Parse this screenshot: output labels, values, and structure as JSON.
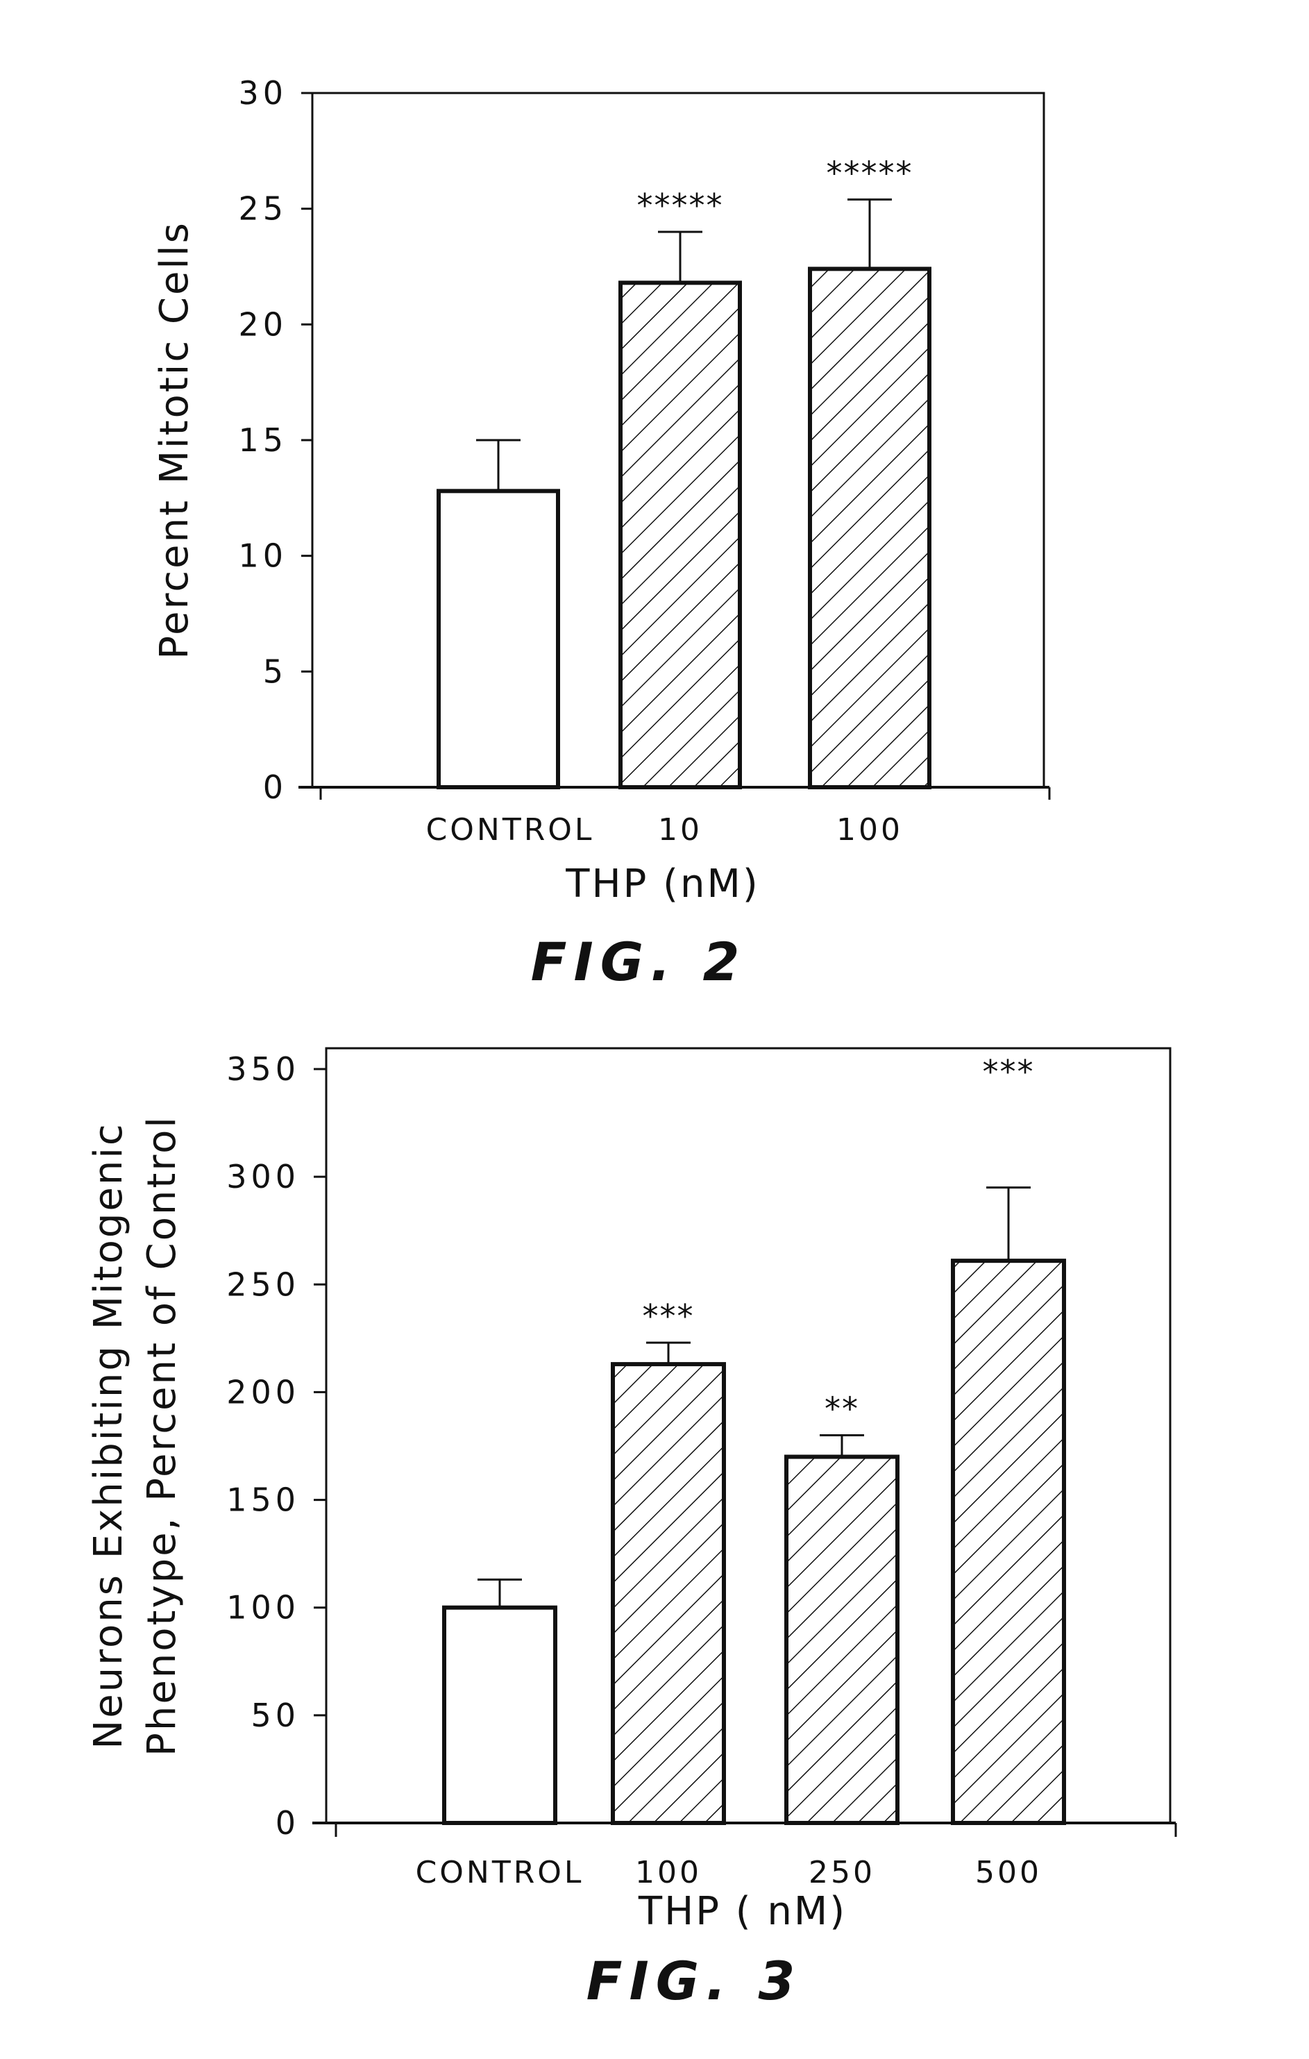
{
  "chart_data": [
    {
      "type": "bar",
      "categories": [
        "CONTROL",
        "10",
        "100"
      ],
      "values": [
        12.8,
        21.8,
        22.4
      ],
      "error": [
        2.2,
        2.2,
        3.0
      ],
      "significance": [
        "",
        "*****",
        "*****"
      ],
      "hatched": [
        false,
        true,
        true
      ],
      "title": "",
      "xlabel": "THP (nM)",
      "ylabel": "Percent Mitotic Cells",
      "ylim": [
        0,
        30
      ],
      "yticks": [
        0,
        5,
        10,
        15,
        20,
        25,
        30
      ],
      "caption": "FIG. 2"
    },
    {
      "type": "bar",
      "categories": [
        "CONTROL",
        "100",
        "250",
        "500"
      ],
      "values": [
        100,
        213,
        170,
        261
      ],
      "error": [
        13,
        10,
        10,
        34
      ],
      "significance": [
        "",
        "***",
        "**",
        "***"
      ],
      "hatched": [
        false,
        true,
        true,
        true
      ],
      "title": "",
      "xlabel": "THP ( nM)",
      "ylabel_lines": [
        "Neurons Exhibiting Mitogenic",
        "Phenotype, Percent of Control"
      ],
      "ylim": [
        0,
        350
      ],
      "yticks": [
        0,
        50,
        100,
        150,
        200,
        250,
        300,
        350
      ],
      "caption": "FIG. 3"
    }
  ]
}
